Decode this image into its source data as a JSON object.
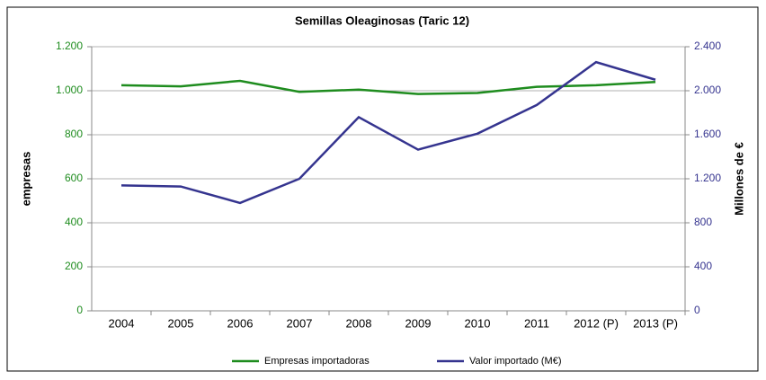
{
  "chart_data": {
    "type": "line",
    "title": "Semillas Oleaginosas (Taric 12)",
    "categories": [
      "2004",
      "2005",
      "2006",
      "2007",
      "2008",
      "2009",
      "2010",
      "2011",
      "2012 (P)",
      "2013 (P)"
    ],
    "series": [
      {
        "name": "Empresas importadoras",
        "color": "#1e8c1e",
        "values": [
          1025,
          1020,
          1045,
          995,
          1005,
          985,
          990,
          1018,
          1025,
          1040
        ]
      },
      {
        "name": "Valor importado (M€)",
        "color": "#35348f",
        "axis": "y2",
        "values": [
          1140,
          1130,
          980,
          1200,
          1760,
          1465,
          1610,
          1870,
          2260,
          2100
        ]
      }
    ],
    "ylabel": "empresas",
    "y2label": "Millones de €",
    "ylim": [
      0,
      1200
    ],
    "yticks": [
      0,
      200,
      400,
      600,
      800,
      {
        "value": 1000,
        "label": "1.000"
      },
      {
        "value": 1200,
        "label": "1.200"
      }
    ],
    "y2lim": [
      0,
      2400
    ],
    "y2ticks": [
      0,
      400,
      800,
      {
        "value": 1200,
        "label": "1.200"
      },
      {
        "value": 1600,
        "label": "1.600"
      },
      {
        "value": 2000,
        "label": "2.000"
      },
      {
        "value": 2400,
        "label": "2.400"
      }
    ],
    "grid": true,
    "legend": "bottom"
  }
}
